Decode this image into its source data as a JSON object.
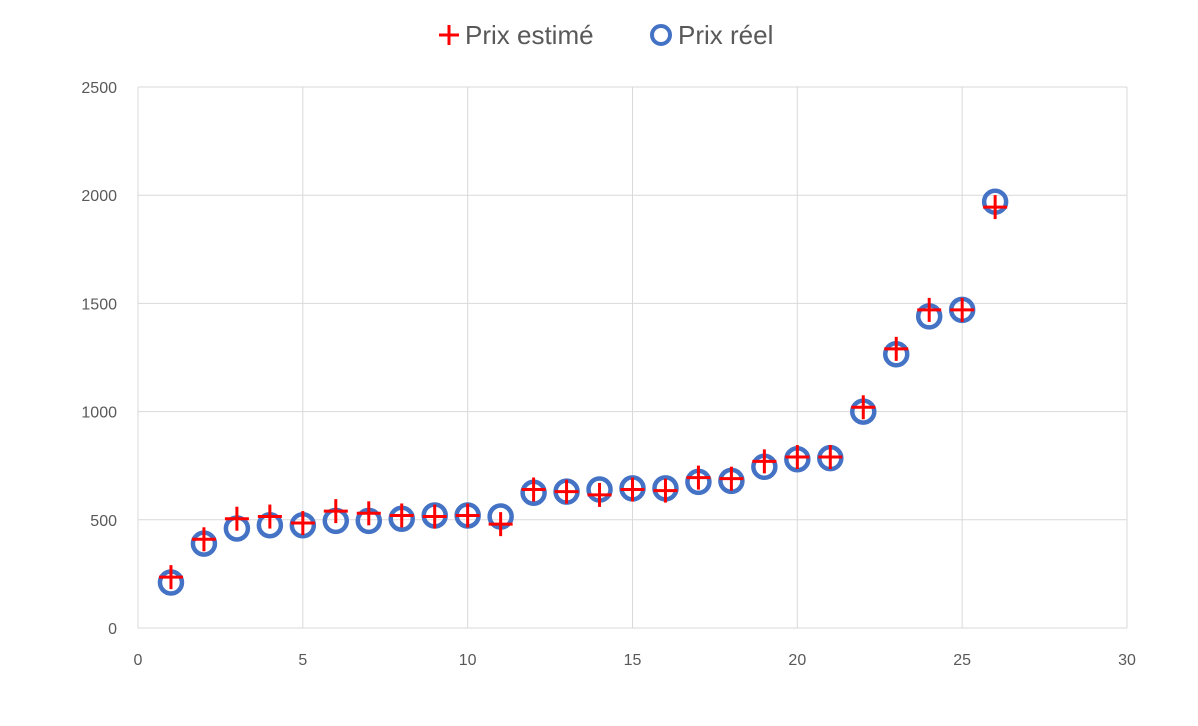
{
  "chart_data": {
    "type": "scatter",
    "title": "",
    "xlabel": "",
    "ylabel": "",
    "xlim": [
      0,
      30
    ],
    "ylim": [
      0,
      2500
    ],
    "x_ticks": [
      0,
      5,
      10,
      15,
      20,
      25,
      30
    ],
    "y_ticks": [
      0,
      500,
      1000,
      1500,
      2000,
      2500
    ],
    "x_tick_labels": [
      "0",
      "5",
      "10",
      "15",
      "20",
      "25",
      "30"
    ],
    "y_tick_labels": [
      "0",
      "500",
      "1000",
      "1500",
      "2000",
      "2500"
    ],
    "grid": true,
    "legend_position": "top",
    "x": [
      1,
      2,
      3,
      4,
      5,
      6,
      7,
      8,
      9,
      10,
      11,
      12,
      13,
      14,
      15,
      16,
      17,
      18,
      19,
      20,
      21,
      22,
      23,
      24,
      25,
      26
    ],
    "series": [
      {
        "name": "Prix estimé",
        "marker": "plus",
        "color": "#FF0000",
        "values": [
          235,
          410,
          505,
          515,
          485,
          540,
          530,
          520,
          515,
          520,
          480,
          640,
          630,
          615,
          640,
          635,
          695,
          690,
          770,
          790,
          790,
          1020,
          1290,
          1470,
          1470,
          1945
        ]
      },
      {
        "name": "Prix réel",
        "marker": "circle",
        "color": "#4472C4",
        "values": [
          210,
          390,
          460,
          475,
          475,
          495,
          495,
          505,
          520,
          520,
          515,
          625,
          630,
          640,
          645,
          645,
          675,
          680,
          745,
          780,
          785,
          1000,
          1265,
          1440,
          1470,
          1970
        ]
      }
    ]
  }
}
